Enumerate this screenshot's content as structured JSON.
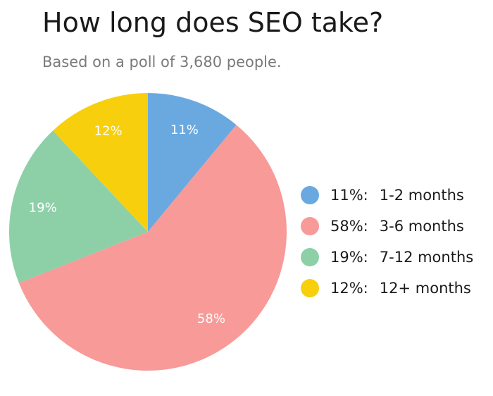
{
  "title": "How long does SEO take?",
  "subtitle": "Based on a poll of 3,680 people.",
  "chart_data": {
    "type": "pie",
    "title": "How long does SEO take?",
    "subtitle": "Based on a poll of 3,680 people.",
    "legend_position": "right",
    "slices": [
      {
        "label": "1-2 months",
        "value": 11,
        "value_label": "11%",
        "legend_pct": "11%:",
        "color": "#6aa9e0"
      },
      {
        "label": "3-6 months",
        "value": 58,
        "value_label": "58%",
        "legend_pct": "58%:",
        "color": "#f79a98"
      },
      {
        "label": "7-12 months",
        "value": 19,
        "value_label": "19%",
        "legend_pct": "19%:",
        "color": "#8dd0a8"
      },
      {
        "label": "12+ months",
        "value": 12,
        "value_label": "12%",
        "legend_pct": "12%:",
        "color": "#f8cf0d"
      }
    ]
  }
}
